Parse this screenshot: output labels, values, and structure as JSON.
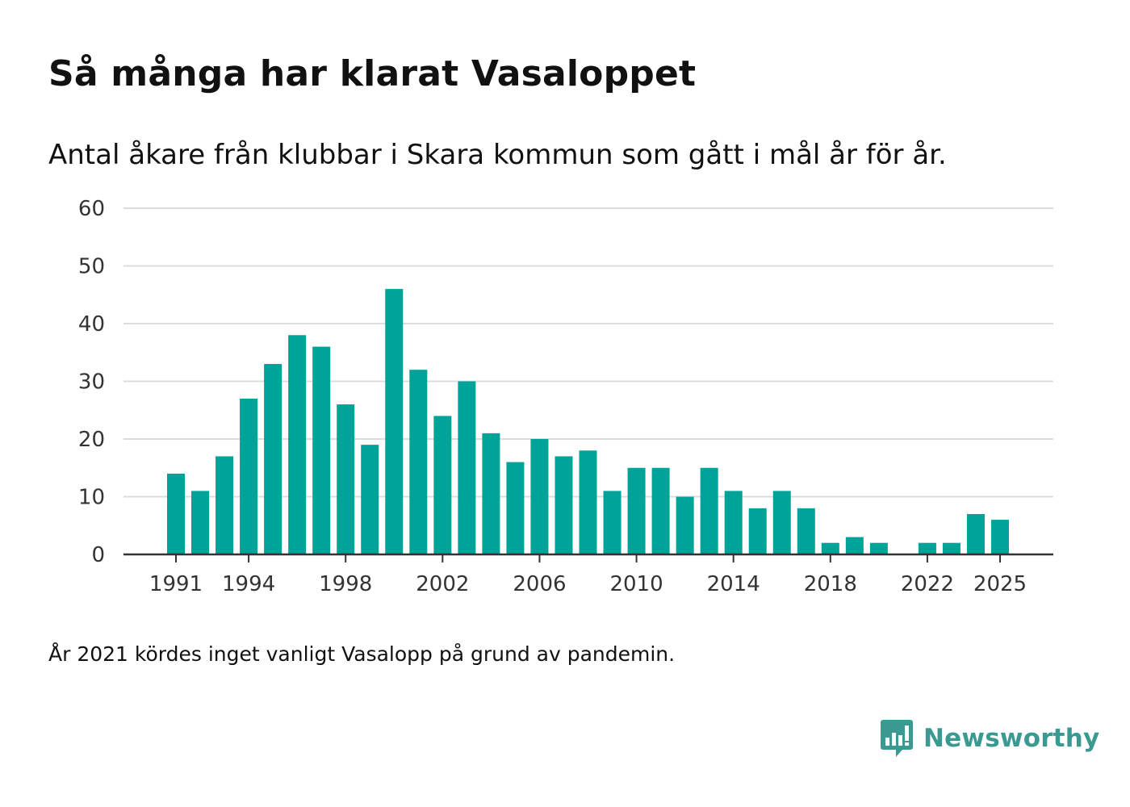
{
  "chart_data": {
    "type": "bar",
    "title": "Så många har klarat Vasaloppet",
    "subtitle": "Antal åkare från klubbar i Skara kommun som gått i mål år för år.",
    "xlabel": "",
    "ylabel": "",
    "ylim": [
      0,
      60
    ],
    "yticks": [
      "0",
      "10",
      "20",
      "30",
      "40",
      "50",
      "60"
    ],
    "ytick_values": [
      0,
      10,
      20,
      30,
      40,
      50,
      60
    ],
    "xticks": [
      "1991",
      "1994",
      "1998",
      "2002",
      "2006",
      "2010",
      "2014",
      "2018",
      "2022",
      "2025"
    ],
    "xtick_years": [
      1991,
      1994,
      1998,
      2002,
      2006,
      2010,
      2014,
      2018,
      2022,
      2025
    ],
    "years": [
      1991,
      1992,
      1993,
      1994,
      1995,
      1996,
      1997,
      1998,
      1999,
      2000,
      2001,
      2002,
      2003,
      2004,
      2005,
      2006,
      2007,
      2008,
      2009,
      2010,
      2011,
      2012,
      2013,
      2014,
      2015,
      2016,
      2017,
      2018,
      2019,
      2020,
      2021,
      2022,
      2023,
      2024,
      2025
    ],
    "values": [
      14,
      11,
      17,
      27,
      33,
      38,
      36,
      26,
      19,
      46,
      32,
      24,
      30,
      21,
      16,
      20,
      17,
      18,
      11,
      15,
      15,
      10,
      15,
      11,
      8,
      11,
      8,
      2,
      3,
      2,
      null,
      2,
      2,
      7,
      6
    ],
    "bar_color": "#00a398",
    "grid": true,
    "legend": "none"
  },
  "footnote": "År 2021 kördes inget vanligt Vasalopp på grund av pandemin.",
  "logo": {
    "icon": "newsworthy-logo-icon",
    "text": "Newsworthy",
    "color": "#3a9a92"
  }
}
